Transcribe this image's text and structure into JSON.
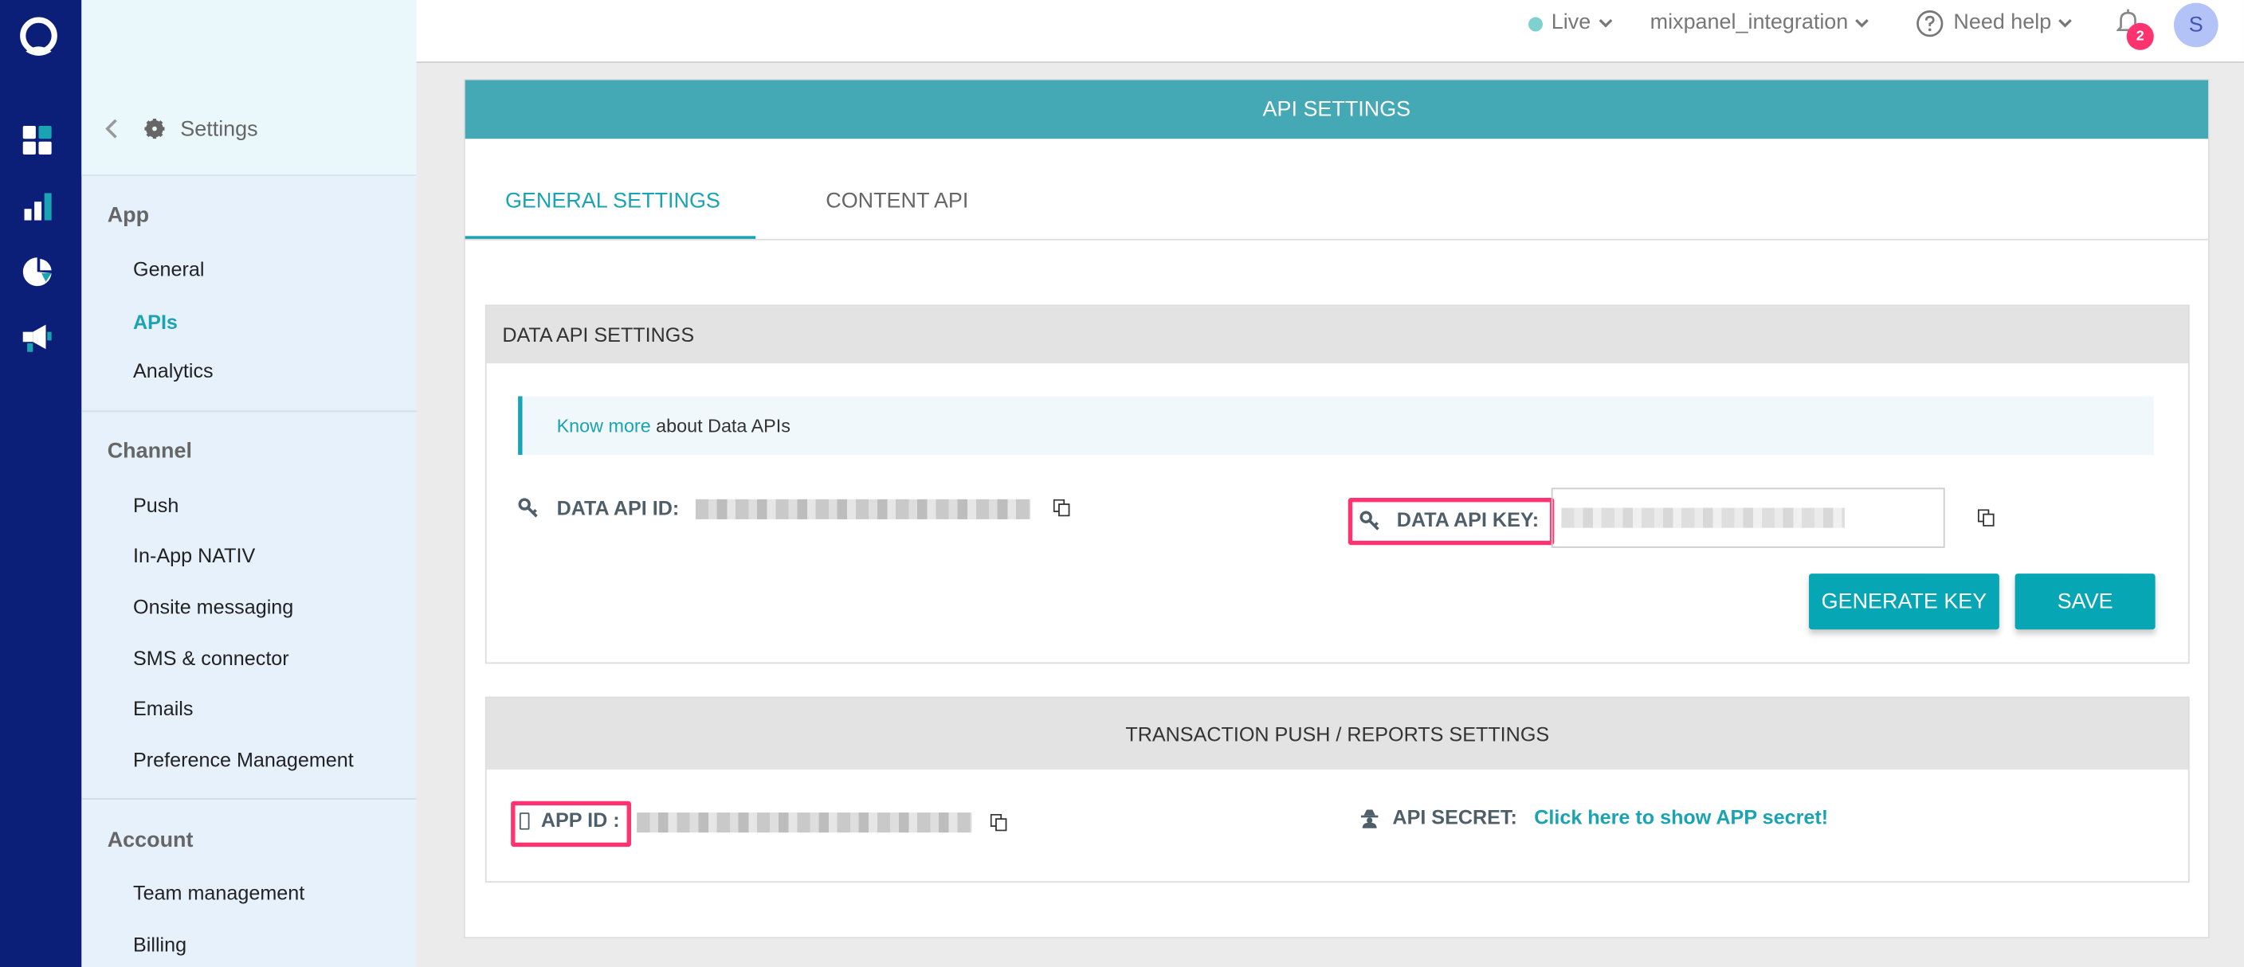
{
  "rail": {
    "icons": [
      "user-logo-icon",
      "dashboard-icon",
      "bar-chart-icon",
      "pie-chart-icon",
      "megaphone-icon"
    ]
  },
  "sidebar": {
    "title": "Settings",
    "sections": [
      {
        "label": "App",
        "items": [
          "General",
          "APIs",
          "Analytics"
        ]
      },
      {
        "label": "Channel",
        "items": [
          "Push",
          "In-App NATIV",
          "Onsite messaging",
          "SMS & connector",
          "Emails",
          "Preference Management"
        ]
      },
      {
        "label": "Account",
        "items": [
          "Team management",
          "Billing"
        ]
      }
    ],
    "active": "APIs"
  },
  "topbar": {
    "environment": "Live",
    "app": "mixpanel_integration",
    "help": "Need help",
    "notifications": "2",
    "avatar": "S"
  },
  "card": {
    "title": "API SETTINGS",
    "tabs": [
      "GENERAL SETTINGS",
      "CONTENT API"
    ],
    "active_tab": "GENERAL SETTINGS",
    "data_api": {
      "heading": "DATA API SETTINGS",
      "info_link": "Know more",
      "info_text": " about Data APIs",
      "id_label": "DATA API ID:",
      "key_label": "DATA API KEY:",
      "generate": "GENERATE KEY",
      "save": "SAVE"
    },
    "transaction": {
      "heading": "TRANSACTION PUSH / REPORTS SETTINGS",
      "app_id_label": "APP ID :",
      "secret_label": "API SECRET:",
      "secret_link": "Click here to show APP secret!"
    }
  },
  "colors": {
    "rail": "#0b1f78",
    "accent": "#07a6b5",
    "highlight": "#ff3370",
    "band": "#45a8b5"
  }
}
